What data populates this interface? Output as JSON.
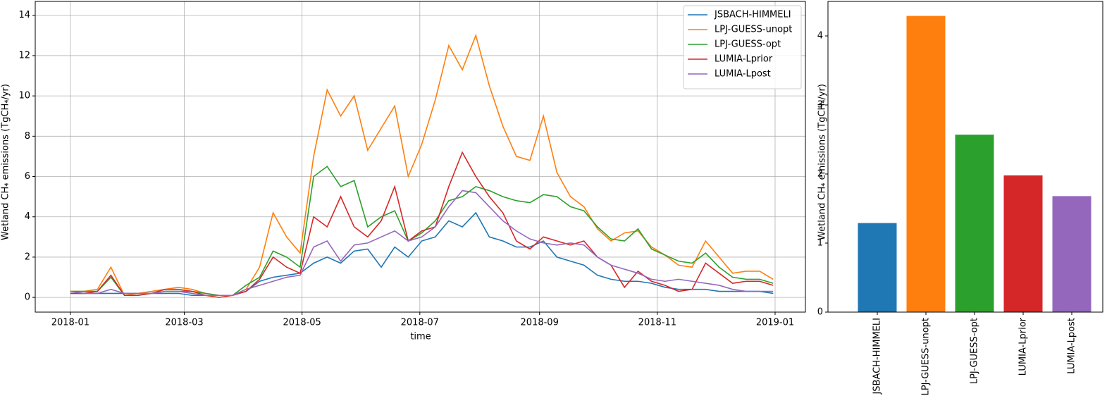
{
  "chart_data": [
    {
      "type": "line",
      "xlabel": "time",
      "ylabel": "Wetland CH₄ emissions (TgCH₄/yr)",
      "grid": true,
      "legend": "upper right",
      "xlim": [
        -18.2,
        380.7
      ],
      "ylim": [
        -0.73,
        14.69
      ],
      "xticks": [
        {
          "value": 0,
          "label": "2018-01"
        },
        {
          "value": 59,
          "label": "2018-03"
        },
        {
          "value": 120,
          "label": "2018-05"
        },
        {
          "value": 181,
          "label": "2018-07"
        },
        {
          "value": 243,
          "label": "2018-09"
        },
        {
          "value": 304,
          "label": "2018-11"
        },
        {
          "value": 365,
          "label": "2019-01"
        }
      ],
      "yticks": [
        0,
        2,
        4,
        6,
        8,
        10,
        12,
        14
      ],
      "x": [
        0,
        7,
        14,
        21,
        28,
        35,
        42,
        49,
        56,
        63,
        70,
        77,
        84,
        91,
        98,
        105,
        112,
        119,
        126,
        133,
        140,
        147,
        154,
        161,
        168,
        175,
        182,
        189,
        196,
        203,
        210,
        217,
        224,
        231,
        238,
        245,
        252,
        259,
        266,
        273,
        280,
        287,
        294,
        301,
        308,
        315,
        322,
        329,
        336,
        343,
        350,
        357,
        364
      ],
      "series": [
        {
          "name": "JSBACH-HIMMELI",
          "color": "#1f77b4",
          "values": [
            0.2,
            0.2,
            0.2,
            0.2,
            0.2,
            0.2,
            0.2,
            0.2,
            0.2,
            0.1,
            0.1,
            0.1,
            0.1,
            0.3,
            0.8,
            1.0,
            1.1,
            1.2,
            1.7,
            2.0,
            1.7,
            2.3,
            2.4,
            1.5,
            2.5,
            2.0,
            2.8,
            3.0,
            3.8,
            3.5,
            4.2,
            3.0,
            2.8,
            2.5,
            2.5,
            2.8,
            2.0,
            1.8,
            1.6,
            1.1,
            0.9,
            0.8,
            0.8,
            0.7,
            0.5,
            0.4,
            0.4,
            0.4,
            0.3,
            0.3,
            0.3,
            0.3,
            0.2
          ]
        },
        {
          "name": "LPJ-GUESS-unopt",
          "color": "#ff7f0e",
          "values": [
            0.3,
            0.3,
            0.4,
            1.5,
            0.1,
            0.2,
            0.3,
            0.4,
            0.5,
            0.4,
            0.2,
            0.1,
            0.1,
            0.4,
            1.5,
            4.2,
            3.0,
            2.2,
            7.0,
            10.3,
            9.0,
            10.0,
            7.3,
            8.4,
            9.5,
            6.0,
            7.6,
            9.8,
            12.5,
            11.3,
            13.0,
            10.5,
            8.5,
            7.0,
            6.8,
            9.0,
            6.2,
            5.0,
            4.5,
            3.4,
            2.8,
            3.2,
            3.3,
            2.5,
            2.1,
            1.6,
            1.5,
            2.8,
            2.0,
            1.2,
            1.3,
            1.3,
            0.9
          ]
        },
        {
          "name": "LPJ-GUESS-opt",
          "color": "#2ca02c",
          "values": [
            0.3,
            0.3,
            0.3,
            1.0,
            0.1,
            0.1,
            0.2,
            0.3,
            0.3,
            0.3,
            0.2,
            0.1,
            0.1,
            0.6,
            1.0,
            2.3,
            2.0,
            1.5,
            6.0,
            6.5,
            5.5,
            5.8,
            3.5,
            4.0,
            4.3,
            2.8,
            3.2,
            3.8,
            4.8,
            5.0,
            5.5,
            5.3,
            5.0,
            4.8,
            4.7,
            5.1,
            5.0,
            4.5,
            4.3,
            3.5,
            2.9,
            2.8,
            3.4,
            2.4,
            2.1,
            1.8,
            1.7,
            2.2,
            1.5,
            1.0,
            0.9,
            0.9,
            0.7
          ]
        },
        {
          "name": "LUMIA-Lprior",
          "color": "#d62728",
          "values": [
            0.2,
            0.2,
            0.3,
            1.1,
            0.1,
            0.1,
            0.2,
            0.4,
            0.4,
            0.3,
            0.1,
            0.0,
            0.1,
            0.3,
            0.9,
            2.0,
            1.5,
            1.2,
            4.0,
            3.5,
            5.0,
            3.5,
            3.0,
            3.8,
            5.5,
            2.8,
            3.3,
            3.5,
            5.5,
            7.2,
            6.0,
            5.0,
            4.2,
            2.8,
            2.4,
            3.0,
            2.8,
            2.6,
            2.8,
            2.0,
            1.6,
            0.5,
            1.3,
            0.8,
            0.6,
            0.3,
            0.4,
            1.7,
            1.2,
            0.7,
            0.8,
            0.8,
            0.6
          ]
        },
        {
          "name": "LUMIA-Lpost",
          "color": "#9467bd",
          "values": [
            0.3,
            0.2,
            0.2,
            0.4,
            0.2,
            0.2,
            0.2,
            0.3,
            0.3,
            0.2,
            0.1,
            0.1,
            0.1,
            0.4,
            0.6,
            0.8,
            1.0,
            1.1,
            2.5,
            2.8,
            1.8,
            2.6,
            2.7,
            3.0,
            3.3,
            2.8,
            3.0,
            3.5,
            4.5,
            5.3,
            5.2,
            4.5,
            3.8,
            3.3,
            2.9,
            2.7,
            2.6,
            2.7,
            2.6,
            2.0,
            1.6,
            1.4,
            1.2,
            0.9,
            0.8,
            0.9,
            0.8,
            0.7,
            0.6,
            0.4,
            0.3,
            0.3,
            0.3
          ]
        }
      ]
    },
    {
      "type": "bar",
      "ylabel": "Wetland CH₄ emissions (TgCH₄/yr)",
      "grid": false,
      "ylim": [
        0,
        4.5
      ],
      "yticks": [
        0,
        1,
        2,
        3,
        4
      ],
      "categories": [
        "JSBACH-HIMMELI",
        "LPJ-GUESS-unopt",
        "LPJ-GUESS-opt",
        "LUMIA-Lprior",
        "LUMIA-Lpost"
      ],
      "values": [
        1.29,
        4.29,
        2.57,
        1.98,
        1.68
      ],
      "colors": [
        "#1f77b4",
        "#ff7f0e",
        "#2ca02c",
        "#d62728",
        "#9467bd"
      ]
    }
  ]
}
